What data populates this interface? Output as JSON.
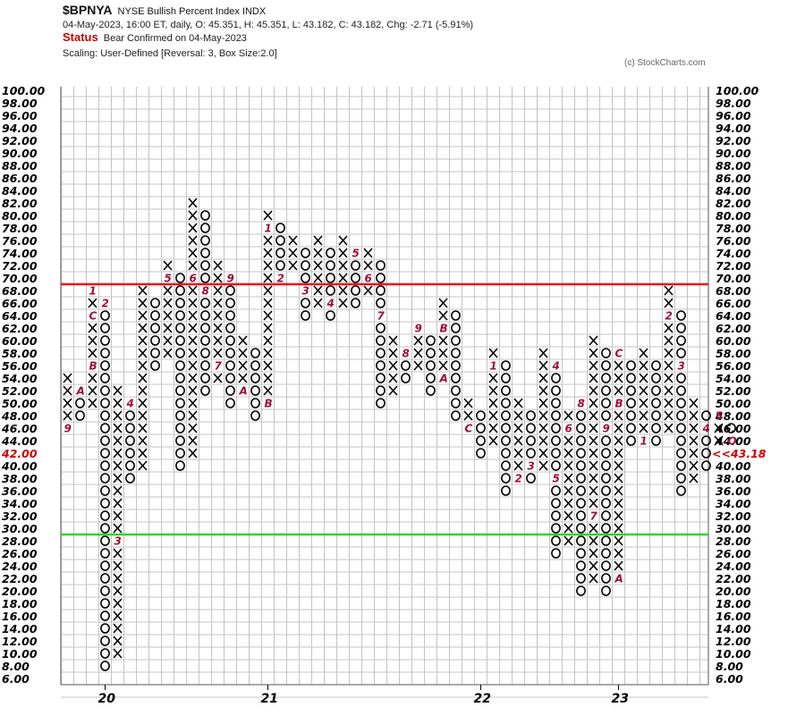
{
  "header": {
    "symbol": "$BPNYA",
    "name": "NYSE Bullish Percent Index  INDX",
    "ohlc_line": "04-May-2023, 16:00 ET, daily, O: 45.351, H: 45.351, L: 43.182, C: 43.182, Chg: -2.71 (-5.91%)",
    "status_label": "Status",
    "status_text": "Bear Confirmed on 04-May-2023",
    "scaling": "Scaling: User-Defined [Reversal: 3, Box Size:2.0]",
    "credit": "(c) StockCharts.com"
  },
  "colors": {
    "grid": "#c4c4c4",
    "resistance": "#ee1111",
    "support": "#22dd22",
    "month_label": "#a0103c",
    "last_value": "#cc0000"
  },
  "chart_data": {
    "type": "point-and-figure",
    "box_size": 2.0,
    "reversal": 3,
    "ylim": [
      6,
      100
    ],
    "y_ticks": [
      "100.00",
      "98.00",
      "96.00",
      "94.00",
      "92.00",
      "90.00",
      "88.00",
      "86.00",
      "84.00",
      "82.00",
      "80.00",
      "78.00",
      "76.00",
      "74.00",
      "72.00",
      "70.00",
      "68.00",
      "66.00",
      "64.00",
      "62.00",
      "60.00",
      "58.00",
      "56.00",
      "54.00",
      "52.00",
      "50.00",
      "48.00",
      "46.00",
      "44.00",
      "42.00",
      "40.00",
      "38.00",
      "36.00",
      "34.00",
      "32.00",
      "30.00",
      "28.00",
      "26.00",
      "24.00",
      "22.00",
      "20.00",
      "18.00",
      "16.00",
      "14.00",
      "12.00",
      "10.00",
      "8.00",
      "6.00"
    ],
    "x_labels": [
      {
        "col": 3,
        "text": "20"
      },
      {
        "col": 16,
        "text": "21"
      },
      {
        "col": 33,
        "text": "22"
      },
      {
        "col": 44,
        "text": "23"
      }
    ],
    "last_value_left": "42.00",
    "last_value_right": "<<43.18",
    "resistance_level": 69,
    "support_level": 29,
    "columns": [
      {
        "type": "X",
        "low": 46,
        "high": 54,
        "marks": {
          "46": "9"
        }
      },
      {
        "type": "O",
        "low": 48,
        "high": 52,
        "marks": {
          "52": "A"
        }
      },
      {
        "type": "X",
        "low": 50,
        "high": 68,
        "marks": {
          "56": "B",
          "64": "C",
          "68": "1"
        }
      },
      {
        "type": "O",
        "low": 8,
        "high": 66,
        "marks": {
          "66": "2"
        }
      },
      {
        "type": "X",
        "low": 10,
        "high": 52,
        "marks": {
          "28": "3"
        }
      },
      {
        "type": "O",
        "low": 38,
        "high": 50,
        "marks": {
          "50": "4"
        }
      },
      {
        "type": "X",
        "low": 40,
        "high": 68,
        "marks": {}
      },
      {
        "type": "O",
        "low": 56,
        "high": 66,
        "marks": {}
      },
      {
        "type": "X",
        "low": 58,
        "high": 72,
        "marks": {
          "70": "5"
        }
      },
      {
        "type": "O",
        "low": 40,
        "high": 70,
        "marks": {}
      },
      {
        "type": "X",
        "low": 42,
        "high": 82,
        "marks": {
          "70": "6"
        }
      },
      {
        "type": "O",
        "low": 52,
        "high": 80,
        "marks": {
          "68": "8"
        }
      },
      {
        "type": "X",
        "low": 54,
        "high": 72,
        "marks": {
          "56": "7"
        }
      },
      {
        "type": "O",
        "low": 50,
        "high": 70,
        "marks": {
          "70": "9"
        }
      },
      {
        "type": "X",
        "low": 52,
        "high": 60,
        "marks": {
          "52": "A"
        }
      },
      {
        "type": "O",
        "low": 48,
        "high": 58,
        "marks": {}
      },
      {
        "type": "X",
        "low": 50,
        "high": 80,
        "marks": {
          "50": "B",
          "78": "1"
        }
      },
      {
        "type": "O",
        "low": 70,
        "high": 78,
        "marks": {
          "70": "2"
        }
      },
      {
        "type": "X",
        "low": 72,
        "high": 76,
        "marks": {}
      },
      {
        "type": "O",
        "low": 64,
        "high": 74,
        "marks": {
          "68": "3"
        }
      },
      {
        "type": "X",
        "low": 66,
        "high": 76,
        "marks": {}
      },
      {
        "type": "O",
        "low": 64,
        "high": 74,
        "marks": {
          "66": "4"
        }
      },
      {
        "type": "X",
        "low": 66,
        "high": 76,
        "marks": {}
      },
      {
        "type": "O",
        "low": 66,
        "high": 74,
        "marks": {
          "74": "5"
        }
      },
      {
        "type": "X",
        "low": 68,
        "high": 74,
        "marks": {
          "70": "6"
        }
      },
      {
        "type": "O",
        "low": 50,
        "high": 72,
        "marks": {
          "64": "7"
        }
      },
      {
        "type": "X",
        "low": 52,
        "high": 60,
        "marks": {}
      },
      {
        "type": "O",
        "low": 54,
        "high": 58,
        "marks": {
          "58": "8"
        }
      },
      {
        "type": "X",
        "low": 56,
        "high": 62,
        "marks": {
          "62": "9"
        }
      },
      {
        "type": "O",
        "low": 52,
        "high": 60,
        "marks": {}
      },
      {
        "type": "X",
        "low": 54,
        "high": 66,
        "marks": {
          "54": "A",
          "62": "B"
        }
      },
      {
        "type": "O",
        "low": 48,
        "high": 64,
        "marks": {}
      },
      {
        "type": "X",
        "low": 46,
        "high": 50,
        "marks": {
          "46": "C"
        }
      },
      {
        "type": "O",
        "low": 42,
        "high": 48,
        "marks": {}
      },
      {
        "type": "X",
        "low": 44,
        "high": 58,
        "marks": {
          "56": "1"
        }
      },
      {
        "type": "O",
        "low": 36,
        "high": 56,
        "marks": {}
      },
      {
        "type": "X",
        "low": 38,
        "high": 50,
        "marks": {
          "38": "2"
        }
      },
      {
        "type": "O",
        "low": 38,
        "high": 48,
        "marks": {
          "40": "3"
        }
      },
      {
        "type": "X",
        "low": 40,
        "high": 58,
        "marks": {}
      },
      {
        "type": "O",
        "low": 26,
        "high": 56,
        "marks": {
          "38": "5",
          "56": "4"
        }
      },
      {
        "type": "X",
        "low": 28,
        "high": 48,
        "marks": {
          "46": "6"
        }
      },
      {
        "type": "O",
        "low": 20,
        "high": 50,
        "marks": {
          "50": "8"
        }
      },
      {
        "type": "X",
        "low": 22,
        "high": 60,
        "marks": {
          "32": "7"
        }
      },
      {
        "type": "O",
        "low": 20,
        "high": 58,
        "marks": {
          "46": "9"
        }
      },
      {
        "type": "X",
        "low": 22,
        "high": 58,
        "marks": {
          "22": "A",
          "50": "B",
          "58": "C"
        }
      },
      {
        "type": "O",
        "low": 44,
        "high": 56,
        "marks": {}
      },
      {
        "type": "X",
        "low": 46,
        "high": 58,
        "marks": {
          "44": "1"
        }
      },
      {
        "type": "O",
        "low": 44,
        "high": 56,
        "marks": {}
      },
      {
        "type": "X",
        "low": 46,
        "high": 68,
        "marks": {
          "64": "2"
        }
      },
      {
        "type": "O",
        "low": 36,
        "high": 64,
        "marks": {
          "56": "3"
        }
      },
      {
        "type": "X",
        "low": 38,
        "high": 50,
        "marks": {}
      },
      {
        "type": "O",
        "low": 40,
        "high": 48,
        "marks": {
          "46": "4"
        }
      },
      {
        "type": "X",
        "low": 44,
        "high": 46,
        "marks": {
          "48": "5"
        }
      },
      {
        "type": "O",
        "low": 44,
        "high": 46,
        "marks": {
          "44": "O"
        }
      }
    ]
  }
}
